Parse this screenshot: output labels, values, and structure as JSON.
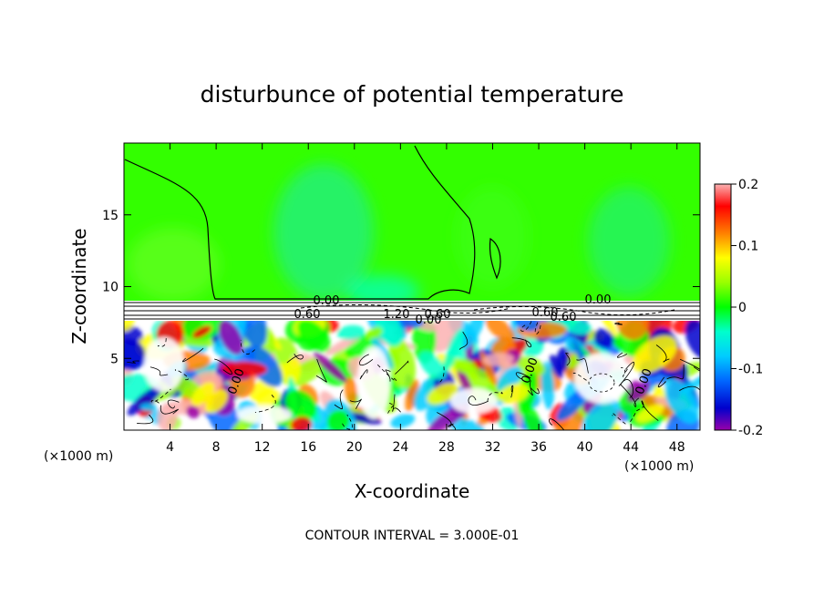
{
  "chart_data": {
    "type": "heatmap",
    "title": "disturbunce of potential temperature",
    "xlabel": "X-coordinate",
    "ylabel": "Z-coordinate",
    "x_unit_left": "(×1000 m)",
    "x_unit_right": "(×1000 m)",
    "xlim": [
      0,
      50
    ],
    "ylim": [
      0,
      20
    ],
    "x_ticks": [
      4,
      8,
      12,
      16,
      20,
      24,
      28,
      32,
      36,
      40,
      44,
      48
    ],
    "y_ticks": [
      5,
      10,
      15
    ],
    "colorbar": {
      "range": [
        -0.2,
        0.2
      ],
      "ticks": [
        "0.2",
        "0.1",
        "0",
        "-0.1",
        "-0.2"
      ],
      "colors": [
        "#fbb2b2",
        "#ff0000",
        "#ff8000",
        "#ffff00",
        "#99ff00",
        "#00ff00",
        "#00ffcc",
        "#00ccff",
        "#0066ff",
        "#0000cc",
        "#9900aa"
      ]
    },
    "contour_labels": [
      "0.00",
      "0.60",
      "1.20",
      "0.60",
      "0.00",
      "0.60",
      "0.00",
      "0.00",
      "0.00",
      "0.00",
      "0.60"
    ],
    "footer": "CONTOUR INTERVAL = 3.000E-01"
  }
}
